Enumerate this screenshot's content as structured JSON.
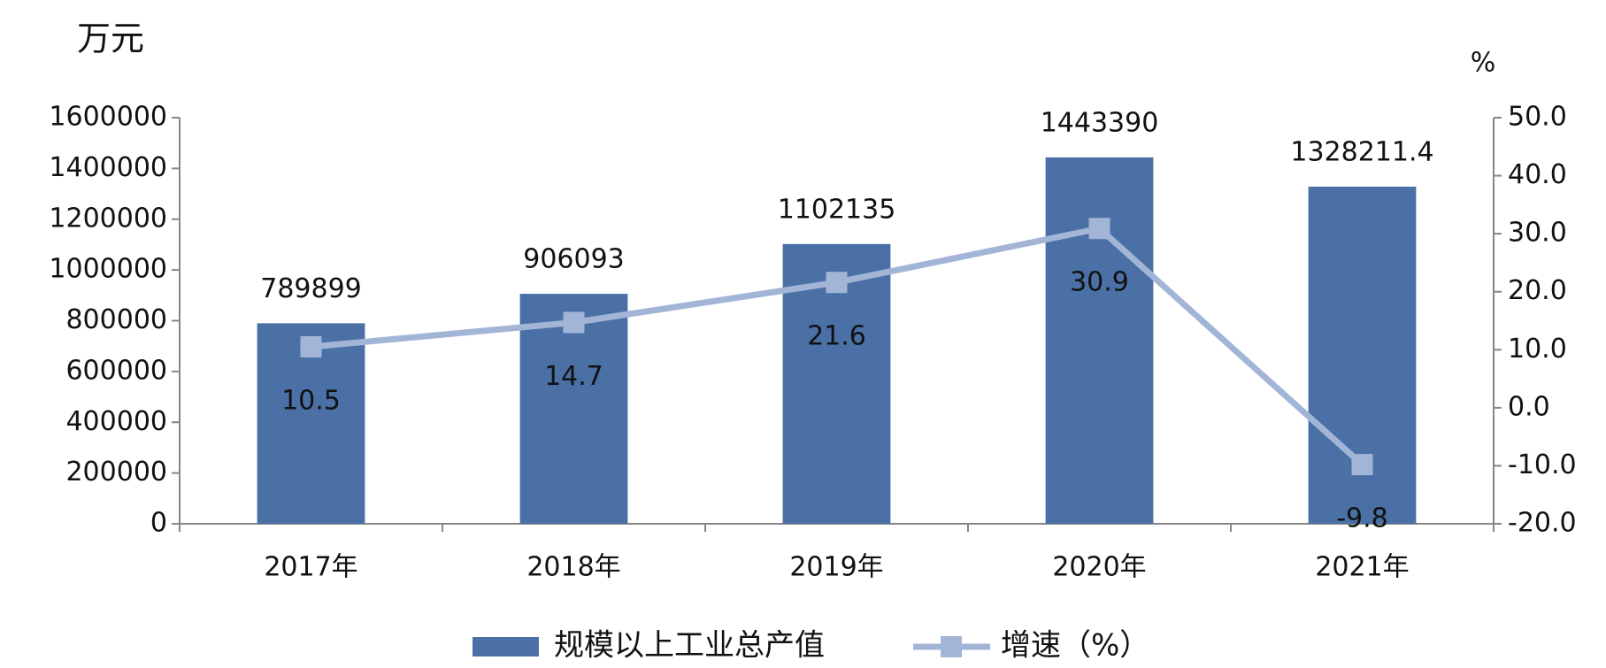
{
  "chart_data": {
    "type": "bar",
    "y_label": "万元",
    "y2_label": "%",
    "categories": [
      "2017年",
      "2018年",
      "2019年",
      "2020年",
      "2021年"
    ],
    "series": [
      {
        "name": "规模以上工业总产值",
        "type": "bar",
        "color": "#4a70a6",
        "values": [
          789899,
          906093,
          1102135,
          1443390,
          1328211.4
        ]
      },
      {
        "name": "增速（%）",
        "type": "line",
        "axis": "y2",
        "color": "#a3b5d7",
        "values": [
          10.5,
          14.7,
          21.6,
          30.9,
          -9.8
        ]
      }
    ],
    "ylim": [
      0,
      1600000
    ],
    "yticks": [
      0,
      200000,
      400000,
      600000,
      800000,
      1000000,
      1200000,
      1400000,
      1600000
    ],
    "y2lim": [
      -20,
      50
    ],
    "y2ticks": [
      {
        "value": -20,
        "label": "-20.0"
      },
      {
        "value": -10,
        "label": "-10.0"
      },
      {
        "value": 0,
        "label": "0.0"
      },
      {
        "value": 10,
        "label": "10.0"
      },
      {
        "value": 20,
        "label": "20.0"
      },
      {
        "value": 30,
        "label": "30.0"
      },
      {
        "value": 40,
        "label": "40.0"
      },
      {
        "value": 50,
        "label": "50.0"
      }
    ],
    "grid": false,
    "legend": "bottom"
  }
}
